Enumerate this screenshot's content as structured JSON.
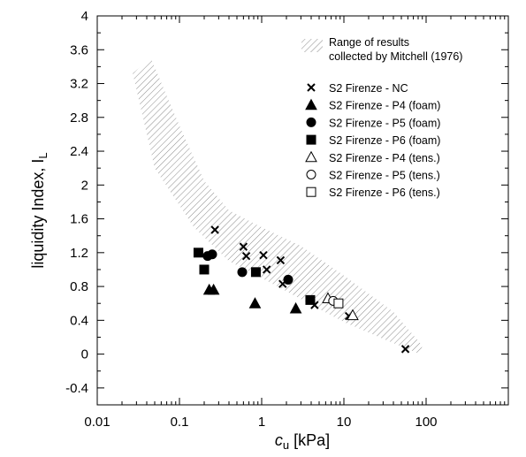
{
  "chart_data": {
    "type": "scatter",
    "title": "",
    "xlabel": {
      "symbol": "c",
      "sub": "u",
      "rest": " [kPa]"
    },
    "ylabel": {
      "main": "liquidity Index, I",
      "sub": "L"
    },
    "xscale": "log",
    "xlim": [
      0.01,
      1000
    ],
    "ylim": [
      -0.6,
      4.0
    ],
    "xticks": [
      {
        "value": 0.01,
        "label": "0.01"
      },
      {
        "value": 0.1,
        "label": "0.1"
      },
      {
        "value": 1,
        "label": "1"
      },
      {
        "value": 10,
        "label": "10"
      },
      {
        "value": 100,
        "label": "100"
      }
    ],
    "yticks": [
      {
        "value": -0.4,
        "label": "-0.4"
      },
      {
        "value": 0,
        "label": "0"
      },
      {
        "value": 0.4,
        "label": "0.4"
      },
      {
        "value": 0.8,
        "label": "0.8"
      },
      {
        "value": 1.2,
        "label": "1.2"
      },
      {
        "value": 1.6,
        "label": "1.6"
      },
      {
        "value": 2,
        "label": "2"
      },
      {
        "value": 2.4,
        "label": "2.4"
      },
      {
        "value": 2.8,
        "label": "2.8"
      },
      {
        "value": 3.2,
        "label": "3.2"
      },
      {
        "value": 3.6,
        "label": "3.6"
      },
      {
        "value": 4,
        "label": "4"
      }
    ],
    "grid": false,
    "legend_position": "top-right",
    "band": {
      "name": "Range of results collected by Mitchell (1976)",
      "name_lines": [
        "Range of results",
        "collected by Mitchell (1976)"
      ],
      "upper": [
        [
          0.045,
          3.5
        ],
        [
          0.1,
          2.7
        ],
        [
          0.2,
          2.05
        ],
        [
          0.4,
          1.7
        ],
        [
          1,
          1.5
        ],
        [
          3,
          1.28
        ],
        [
          10,
          0.93
        ],
        [
          40,
          0.5
        ],
        [
          90,
          0.1
        ]
      ],
      "lower": [
        [
          85,
          0.0
        ],
        [
          40,
          0.13
        ],
        [
          10,
          0.38
        ],
        [
          3,
          0.65
        ],
        [
          1,
          0.9
        ],
        [
          0.4,
          1.1
        ],
        [
          0.15,
          1.5
        ],
        [
          0.05,
          2.2
        ],
        [
          0.027,
          3.32
        ]
      ]
    },
    "series": [
      {
        "name": "S2 Firenze - NC",
        "marker": "x",
        "x": [
          0.27,
          0.6,
          0.65,
          1.05,
          1.15,
          1.7,
          1.8,
          4.4,
          11.5,
          56
        ],
        "y": [
          1.47,
          1.27,
          1.16,
          1.17,
          1.0,
          1.11,
          0.83,
          0.58,
          0.45,
          0.06
        ]
      },
      {
        "name": "S2 Firenze - P4 (foam)",
        "marker": "triangle-filled",
        "x": [
          0.23,
          0.26,
          0.83,
          2.6
        ],
        "y": [
          0.76,
          0.76,
          0.6,
          0.54
        ]
      },
      {
        "name": "S2 Firenze - P5 (foam)",
        "marker": "circle-filled",
        "x": [
          0.22,
          0.25,
          0.58,
          2.1
        ],
        "y": [
          1.16,
          1.18,
          0.97,
          0.88
        ]
      },
      {
        "name": "S2 Firenze - P6 (foam)",
        "marker": "square-filled",
        "x": [
          0.17,
          0.2,
          0.85,
          3.9
        ],
        "y": [
          1.2,
          1.0,
          0.97,
          0.64
        ]
      },
      {
        "name": "S2 Firenze - P4 (tens.)",
        "marker": "triangle-open",
        "x": [
          6.4,
          12.8
        ],
        "y": [
          0.66,
          0.46
        ]
      },
      {
        "name": "S2 Firenze - P5 (tens.)",
        "marker": "circle-open",
        "x": [
          7.4
        ],
        "y": [
          0.63
        ]
      },
      {
        "name": "S2 Firenze - P6 (tens.)",
        "marker": "square-open",
        "x": [
          8.6
        ],
        "y": [
          0.6
        ]
      }
    ]
  }
}
